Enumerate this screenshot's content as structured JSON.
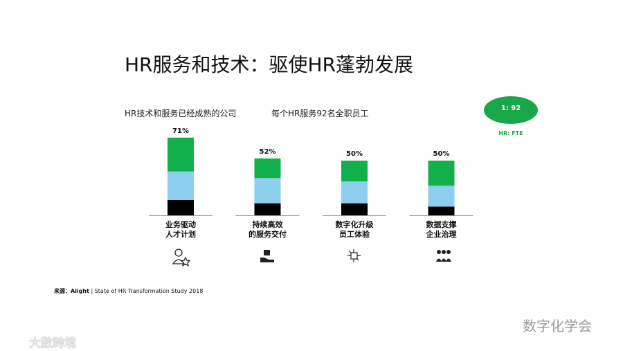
{
  "header": {
    "title": "HR服务和技术：驱使HR蓬勃发展"
  },
  "headings": [
    "HR技术和服务已经成熟的公司",
    "每个HR服务92名全职员工"
  ],
  "badge": {
    "ratio": "1: 92",
    "caption": "HR: FTE"
  },
  "chart_data": {
    "type": "stacked-bar",
    "categories": [
      "业务驱动\n人才计划",
      "持续高效\n的服务交付",
      "数字化升级\n员工体验",
      "数据支撑\n企业治理"
    ],
    "series": [
      {
        "color": "#000000",
        "values": [
          14,
          11,
          11,
          8
        ]
      },
      {
        "color": "#8ecff0",
        "values": [
          26,
          23,
          20,
          19
        ]
      },
      {
        "color": "#12b04c",
        "values": [
          31,
          18,
          19,
          23
        ]
      }
    ],
    "totals": [
      71,
      52,
      50,
      50
    ],
    "total_labels": [
      "71%",
      "52%",
      "50%",
      "50%"
    ]
  },
  "source": {
    "label": "来源：",
    "org": "Alight",
    "sep": "|",
    "study": "State of HR Transformation Study 2018"
  },
  "watermarks": [
    "数字化学会",
    "大數跨境"
  ]
}
